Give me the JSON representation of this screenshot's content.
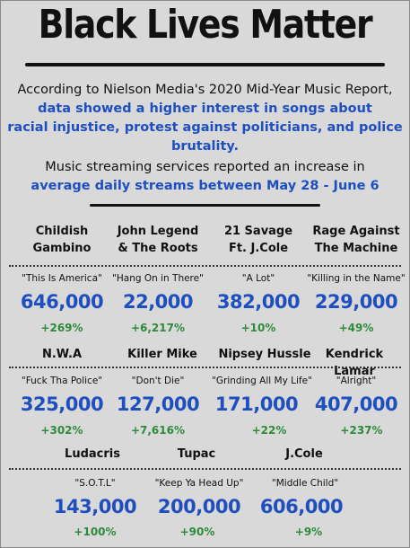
{
  "title": "Black Lives Matter",
  "intro": {
    "line1": "According to Nielson Media's 2020 Mid-Year Music Report,",
    "line2": "data showed a higher interest in songs about",
    "line3": "racial injustice, protest against politicians, and police brutality.",
    "line4": "Music streaming services reported an increase in",
    "line5": "average daily streams between May 28 - June 6"
  },
  "rows": [
    {
      "artists": [
        {
          "l1": "Childish",
          "l2": "Gambino"
        },
        {
          "l1": "John Legend",
          "l2": "& The Roots"
        },
        {
          "l1": "21 Savage",
          "l2": "Ft. J.Cole"
        },
        {
          "l1": "Rage Against",
          "l2": "The Machine"
        }
      ],
      "songs": [
        "\"This Is America\"",
        "\"Hang On in There\"",
        "\"A Lot\"",
        "\"Killing in the Name\""
      ],
      "streams": [
        "646,000",
        "22,000",
        "382,000",
        "229,000"
      ],
      "increase": [
        "+269%",
        "+6,217%",
        "+10%",
        "+49%"
      ]
    },
    {
      "artists": [
        "N.W.A",
        "Killer Mike",
        "Nipsey Hussle",
        "Kendrick Lamar"
      ],
      "songs": [
        "\"Fuck Tha Police\"",
        "\"Don't Die\"",
        "\"Grinding All My Life\"",
        "\"Alright\""
      ],
      "streams": [
        "325,000",
        "127,000",
        "171,000",
        "407,000"
      ],
      "increase": [
        "+302%",
        "+7,616%",
        "+22%",
        "+237%"
      ]
    },
    {
      "artists": [
        "Ludacris",
        "Tupac",
        "J.Cole"
      ],
      "songs": [
        "\"S.O.T.L\"",
        "\"Keep Ya Head Up\"",
        "\"Middle Child\""
      ],
      "streams": [
        "143,000",
        "200,000",
        "606,000"
      ],
      "increase": [
        "+100%",
        "+90%",
        "+9%"
      ]
    }
  ],
  "colors": {
    "accent": "#1f4fbf",
    "increase": "#2e8b3a",
    "background": "#d9d9d9"
  }
}
